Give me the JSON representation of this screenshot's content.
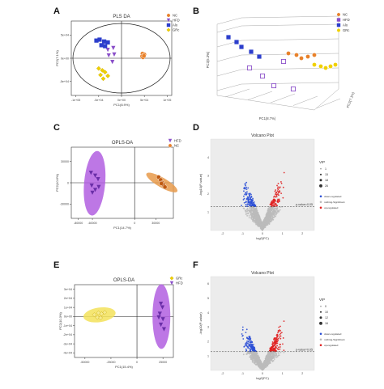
{
  "panel_labels": [
    "A",
    "B",
    "C",
    "D",
    "E",
    "F"
  ],
  "colors": {
    "nc": "#e8812a",
    "hfd": "#8a4fc9",
    "alo": "#2c3ecc",
    "grc": "#f0d000",
    "ellipse_hfd": "#b15fe0",
    "ellipse_nc": "#e89a4a",
    "ellipse_grc": "#f3e25a",
    "down": "#2b4fd6",
    "up": "#e02020",
    "nonsig": "#bbbbbb"
  },
  "chart_data": [
    {
      "id": "A",
      "type": "scatter",
      "title": "PLS DA",
      "xlabel": "PC1(8.9%)",
      "ylabel": "PC2(7.1%)",
      "xticks": [
        "-1e+05",
        "-5e+04",
        "0e+00",
        "5e+04",
        "1e+05"
      ],
      "yticks": [
        "5e+04",
        "0e+00",
        "-5e+04"
      ],
      "xlim": [
        -110000,
        110000
      ],
      "ylim": [
        -80000,
        80000
      ],
      "legend": [
        "NC",
        "HFD",
        "Alo",
        "GRc"
      ],
      "series": [
        {
          "name": "NC",
          "marker": "circle",
          "points": [
            [
              46000,
              10000
            ],
            [
              48000,
              6000
            ],
            [
              45000,
              4000
            ],
            [
              50000,
              8000
            ],
            [
              47000,
              2000
            ],
            [
              49000,
              5000
            ]
          ]
        },
        {
          "name": "HFD",
          "marker": "triangle",
          "points": [
            [
              -18000,
              22000
            ],
            [
              -30000,
              18000
            ],
            [
              -16000,
              8000
            ],
            [
              -28000,
              6000
            ],
            [
              -20000,
              -8000
            ]
          ]
        },
        {
          "name": "Alo",
          "marker": "square",
          "points": [
            [
              -55000,
              38000
            ],
            [
              -48000,
              40000
            ],
            [
              -38000,
              36000
            ],
            [
              -30000,
              34000
            ],
            [
              -44000,
              28000
            ],
            [
              -36000,
              26000
            ]
          ]
        },
        {
          "name": "GRc",
          "marker": "diamond",
          "points": [
            [
              -50000,
              -22000
            ],
            [
              -42000,
              -26000
            ],
            [
              -36000,
              -30000
            ],
            [
              -46000,
              -36000
            ],
            [
              -30000,
              -38000
            ],
            [
              -40000,
              -44000
            ]
          ]
        }
      ]
    },
    {
      "id": "B",
      "type": "scatter",
      "title": "",
      "xlabel": "PC1(8.7%)",
      "ylabel": "PC3(5.3%)",
      "zlabel": "PC2(7.1%)",
      "legend": [
        "NC",
        "HFD",
        "Alo",
        "GRc"
      ]
    },
    {
      "id": "C",
      "type": "scatter",
      "title": "OPLS-DA",
      "xlabel": "PC1(14.7%)",
      "ylabel": "PC2(10.6%)",
      "xticks": [
        "-80000",
        "-60000",
        "0",
        "30000"
      ],
      "yticks": [
        "30000",
        "0",
        "-30000"
      ],
      "xlim": [
        -90000,
        55000
      ],
      "ylim": [
        -50000,
        50000
      ],
      "legend": [
        "HFD",
        "NC"
      ],
      "series": [
        {
          "name": "HFD",
          "marker": "triangle",
          "points": [
            [
              -62000,
              14000
            ],
            [
              -56000,
              10000
            ],
            [
              -52000,
              5000
            ],
            [
              -61000,
              -4000
            ],
            [
              -56000,
              -10000
            ],
            [
              -60000,
              -14000
            ],
            [
              -51000,
              -6000
            ]
          ]
        },
        {
          "name": "NC",
          "marker": "circle",
          "points": [
            [
              34000,
              8000
            ],
            [
              37000,
              4000
            ],
            [
              39000,
              0
            ],
            [
              41000,
              -3000
            ],
            [
              43000,
              -6000
            ],
            [
              38000,
              -1000
            ]
          ]
        }
      ]
    },
    {
      "id": "D",
      "type": "scatter",
      "title": "Volcano Plot",
      "xlabel": "log2(FC)",
      "ylabel": "-log10(P-value)",
      "xticks": [
        "-2",
        "-1",
        "0",
        "1",
        "2"
      ],
      "yticks": [
        "4",
        "3",
        "2",
        "1"
      ],
      "xlim": [
        -2.6,
        2.6
      ],
      "ylim": [
        0,
        5
      ],
      "threshold_label": "p-value=0.05",
      "legend_title": "VIP",
      "vip_sizes": [
        "1",
        "15",
        "18",
        "26"
      ],
      "status_legend": [
        "down-regulated",
        "nothing-Significant",
        "up-regulated"
      ]
    },
    {
      "id": "E",
      "type": "scatter",
      "title": "OPLS-DA",
      "xlabel": "PC1(15.4%)",
      "ylabel": "PC2(10.3%)",
      "xticks": [
        "-50000",
        "-25000",
        "0",
        "25000"
      ],
      "yticks": [
        "3e+04",
        "2e+04",
        "1e+04",
        "0e+00",
        "-1e+04",
        "-2e+04",
        "-3e+04",
        "-4e+04"
      ],
      "xlim": [
        -60000,
        35000
      ],
      "ylim": [
        -45000,
        35000
      ],
      "legend": [
        "GRc",
        "HFD"
      ],
      "series": [
        {
          "name": "GRc",
          "marker": "diamond",
          "points": [
            [
              -41000,
              2000
            ],
            [
              -37000,
              4000
            ],
            [
              -34000,
              3000
            ],
            [
              -31000,
              4500
            ],
            [
              -38000,
              -1000
            ],
            [
              -35000,
              -1500
            ]
          ]
        },
        {
          "name": "HFD",
          "marker": "triangle",
          "points": [
            [
              23000,
              14000
            ],
            [
              24500,
              10000
            ],
            [
              22000,
              3000
            ],
            [
              25000,
              -3000
            ],
            [
              23000,
              -9000
            ],
            [
              26000,
              -14000
            ],
            [
              21000,
              -1000
            ]
          ]
        }
      ]
    },
    {
      "id": "F",
      "type": "scatter",
      "title": "Volcano Plot",
      "xlabel": "log2(FC)",
      "ylabel": "-log10(P-value)",
      "xticks": [
        "-2",
        "-1",
        "0",
        "1",
        "2"
      ],
      "yticks": [
        "6",
        "5",
        "4",
        "3",
        "2",
        "1"
      ],
      "xlim": [
        -2.6,
        2.6
      ],
      "ylim": [
        0,
        6.5
      ],
      "threshold_label": "p-value=0.05",
      "legend_title": "VIP",
      "vip_sizes": [
        "0",
        "10",
        "12",
        "16"
      ],
      "status_legend": [
        "down-regulated",
        "nothing-Significant",
        "up-regulated"
      ]
    }
  ]
}
